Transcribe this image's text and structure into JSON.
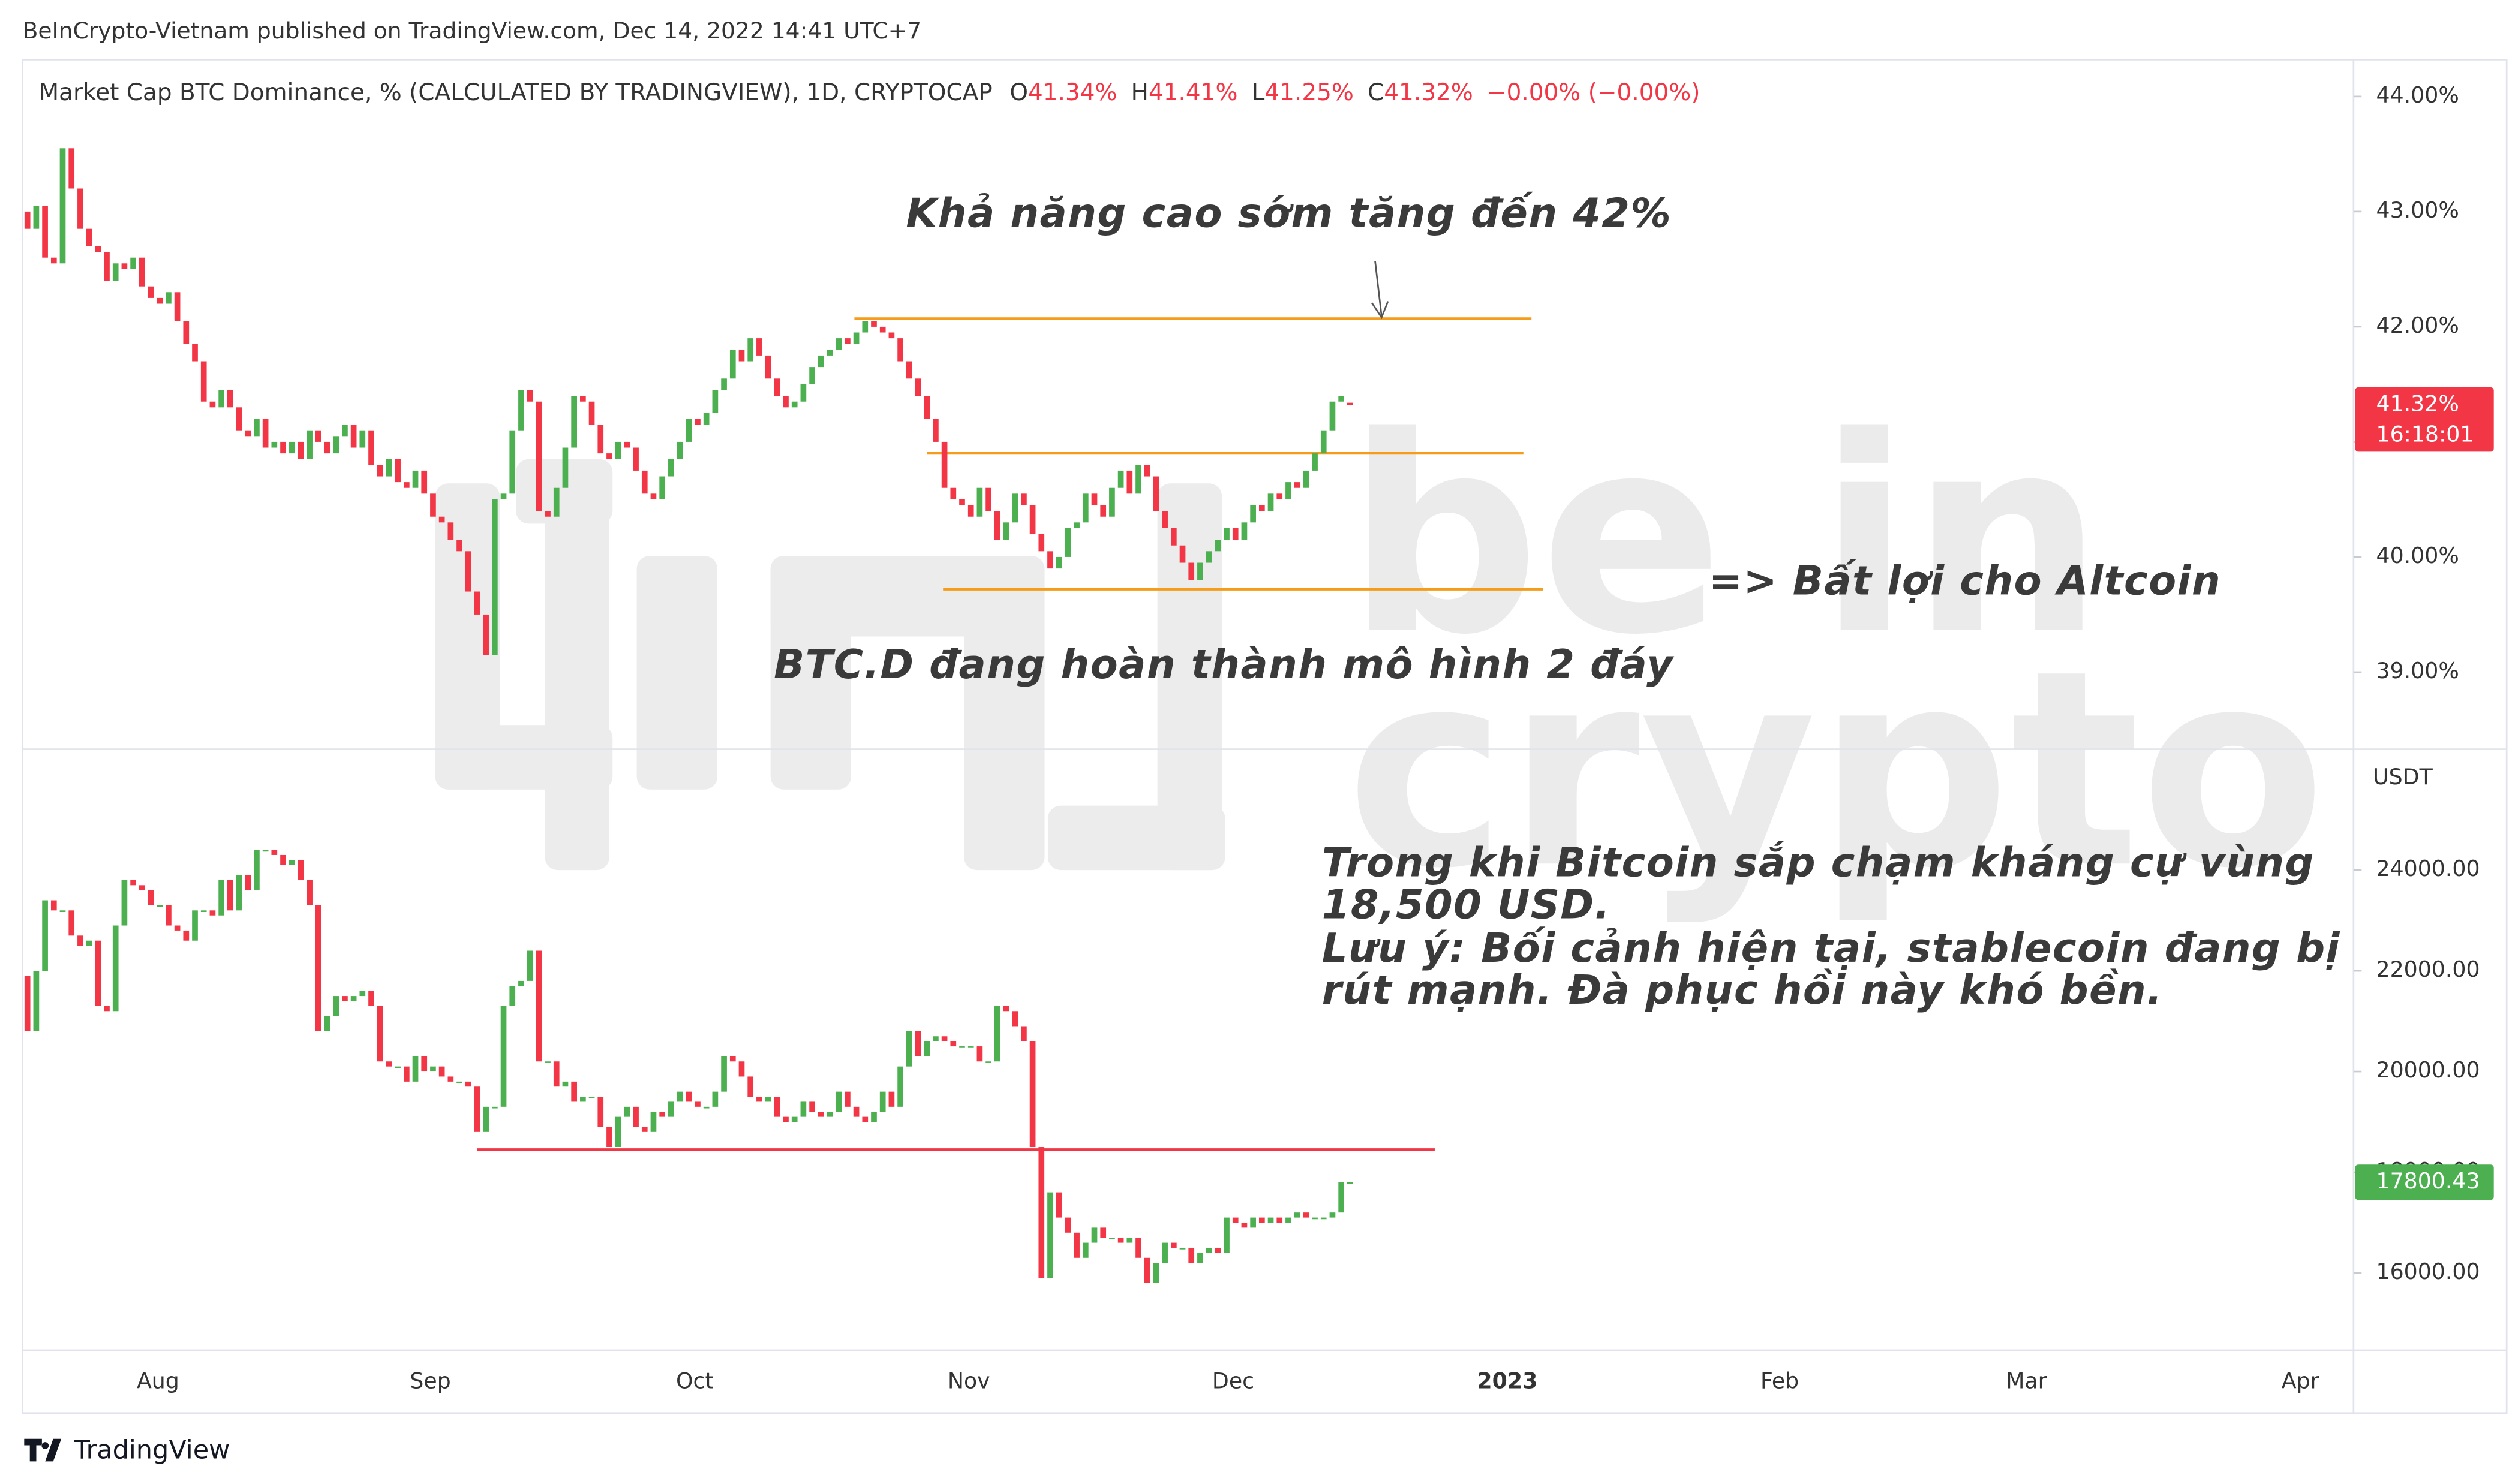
{
  "header": {
    "published": "BeInCrypto-Vietnam published on TradingView.com, Dec 14, 2022 14:41 UTC+7"
  },
  "footer": {
    "brand": "TradingView"
  },
  "watermark": [
    "be in",
    "crypto"
  ],
  "time_axis": {
    "labels": [
      "Aug",
      "Sep",
      "Oct",
      "Nov",
      "Dec",
      "2023",
      "Feb",
      "Mar",
      "Apr"
    ]
  },
  "chart_data": [
    {
      "type": "candlestick",
      "title": "Market Cap BTC Dominance, % (CALCULATED BY TRADINGVIEW), 1D, CRYPTOCAP",
      "legend": [
        "O",
        "41.34%",
        "H",
        "41.41%",
        "L",
        "41.25%",
        "C",
        "41.32%",
        "−0.00% (−0.00%)"
      ],
      "up_color": "#4caf50",
      "down_color": "#f23645",
      "ylim": [
        38.33,
        44.32
      ],
      "yticks": [
        {
          "value": 39,
          "label": "39.00%"
        },
        {
          "value": 40,
          "label": "40.00%"
        },
        {
          "value": 41,
          "label": "41.00%"
        },
        {
          "value": 42,
          "label": "42.00%"
        },
        {
          "value": 43,
          "label": "43.00%"
        },
        {
          "value": 44,
          "label": "44.00%"
        }
      ],
      "last_price": {
        "value": 41.32,
        "label": "41.32%",
        "countdown": "16:18:01"
      },
      "hlines": [
        {
          "value": 42.07,
          "color": "#f59c1a"
        },
        {
          "value": 40.9,
          "color": "#f59c1a"
        },
        {
          "value": 39.72,
          "color": "#f59c1a"
        }
      ],
      "annotations": [
        "Khả năng cao sớm tăng đến 42%",
        "BTC.D đang hoàn thành mô hình 2 đáy",
        "=> Bất lợi cho Altcoin"
      ],
      "open": [
        43.0,
        42.85,
        43.05,
        42.6,
        42.55,
        43.55,
        43.2,
        42.85,
        42.7,
        42.65,
        42.4,
        42.55,
        42.5,
        42.6,
        42.35,
        42.25,
        42.2,
        42.3,
        42.05,
        41.85,
        41.7,
        41.35,
        41.3,
        41.45,
        41.3,
        41.1,
        41.05,
        41.2,
        40.95,
        41.0,
        40.9,
        41.0,
        40.85,
        41.1,
        41.0,
        40.9,
        41.05,
        41.15,
        40.95,
        41.1,
        40.8,
        40.7,
        40.85,
        40.65,
        40.6,
        40.75,
        40.55,
        40.35,
        40.3,
        40.15,
        40.05,
        39.7,
        39.5,
        39.15,
        40.5,
        40.55,
        41.1,
        41.45,
        41.35,
        40.4,
        40.35,
        40.6,
        40.95,
        41.4,
        41.35,
        41.15,
        40.9,
        40.85,
        41.0,
        40.95,
        40.75,
        40.55,
        40.5,
        40.7,
        40.85,
        41.0,
        41.2,
        41.15,
        41.25,
        41.45,
        41.55,
        41.8,
        41.7,
        41.9,
        41.75,
        41.55,
        41.4,
        41.3,
        41.35,
        41.5,
        41.65,
        41.75,
        41.8,
        41.9,
        41.85,
        41.95,
        42.05,
        42.0,
        41.95,
        41.9,
        41.7,
        41.55,
        41.4,
        41.2,
        41.0,
        40.6,
        40.5,
        40.45,
        40.35,
        40.6,
        40.4,
        40.15,
        40.3,
        40.55,
        40.45,
        40.2,
        40.05,
        39.9,
        40.0,
        40.25,
        40.3,
        40.55,
        40.45,
        40.35,
        40.6,
        40.75,
        40.55,
        40.8,
        40.7,
        40.4,
        40.25,
        40.1,
        39.95,
        39.8,
        39.95,
        40.05,
        40.15,
        40.25,
        40.15,
        40.3,
        40.45,
        40.4,
        40.55,
        40.5,
        40.65,
        40.6,
        40.75,
        40.9,
        41.1,
        41.35,
        41.34
      ],
      "close": [
        42.85,
        43.05,
        42.6,
        42.55,
        43.55,
        43.2,
        42.85,
        42.7,
        42.65,
        42.4,
        42.55,
        42.5,
        42.6,
        42.35,
        42.25,
        42.2,
        42.3,
        42.05,
        41.85,
        41.7,
        41.35,
        41.3,
        41.45,
        41.3,
        41.1,
        41.05,
        41.2,
        40.95,
        41.0,
        40.9,
        41.0,
        40.85,
        41.1,
        41.0,
        40.9,
        41.05,
        41.15,
        40.95,
        41.1,
        40.8,
        40.7,
        40.85,
        40.65,
        40.6,
        40.75,
        40.55,
        40.35,
        40.3,
        40.15,
        40.05,
        39.7,
        39.5,
        39.15,
        40.5,
        40.55,
        41.1,
        41.45,
        41.35,
        40.4,
        40.35,
        40.6,
        40.95,
        41.4,
        41.35,
        41.15,
        40.9,
        40.85,
        41.0,
        40.95,
        40.75,
        40.55,
        40.5,
        40.7,
        40.85,
        41.0,
        41.2,
        41.15,
        41.25,
        41.45,
        41.55,
        41.8,
        41.7,
        41.9,
        41.75,
        41.55,
        41.4,
        41.3,
        41.35,
        41.5,
        41.65,
        41.75,
        41.8,
        41.9,
        41.85,
        41.95,
        42.05,
        42.0,
        41.95,
        41.9,
        41.7,
        41.55,
        41.4,
        41.2,
        41.0,
        40.6,
        40.5,
        40.45,
        40.35,
        40.6,
        40.4,
        40.15,
        40.3,
        40.55,
        40.45,
        40.2,
        40.05,
        39.9,
        40.0,
        40.25,
        40.3,
        40.55,
        40.45,
        40.35,
        40.6,
        40.75,
        40.55,
        40.8,
        40.7,
        40.4,
        40.25,
        40.1,
        39.95,
        39.8,
        39.95,
        40.05,
        40.15,
        40.25,
        40.15,
        40.3,
        40.45,
        40.4,
        40.55,
        40.5,
        40.65,
        40.6,
        40.75,
        40.9,
        41.1,
        41.35,
        41.4,
        41.32
      ]
    },
    {
      "type": "candlestick",
      "axis_unit": "USDT",
      "up_color": "#4caf50",
      "down_color": "#f23645",
      "ylim": [
        14464,
        26400
      ],
      "yticks": [
        {
          "value": 16000,
          "label": "16000.00"
        },
        {
          "value": 18000,
          "label": "18000.00"
        },
        {
          "value": 20000,
          "label": "20000.00"
        },
        {
          "value": 22000,
          "label": "22000.00"
        },
        {
          "value": 24000,
          "label": "24000.00"
        }
      ],
      "last_price": {
        "value": 17800.43,
        "label": "17800.43"
      },
      "hlines": [
        {
          "value": 18450,
          "color": "#f23645"
        }
      ],
      "annotations": [
        "Trong khi Bitcoin sắp chạm kháng cự vùng",
        "18,500 USD.",
        "Lưu ý: Bối cảnh hiện tại, stablecoin đang bị",
        "rút mạnh. Đà phục hồi này khó bền."
      ],
      "open": [
        21900,
        20800,
        22000,
        23400,
        23200,
        23200,
        22700,
        22500,
        22600,
        21300,
        21200,
        22900,
        23800,
        23700,
        23600,
        23300,
        23300,
        22900,
        22800,
        22600,
        23200,
        23200,
        23100,
        23800,
        23200,
        23900,
        23600,
        24400,
        24400,
        24300,
        24100,
        24200,
        23800,
        23300,
        20800,
        21100,
        21500,
        21400,
        21500,
        21600,
        21300,
        20200,
        20100,
        20100,
        19800,
        20300,
        20000,
        20100,
        19900,
        19800,
        19800,
        19700,
        18800,
        19300,
        19300,
        21300,
        21700,
        21800,
        22400,
        20200,
        20200,
        19700,
        19800,
        19400,
        19500,
        19500,
        18900,
        18500,
        19100,
        19300,
        18900,
        18800,
        19200,
        19100,
        19400,
        19600,
        19400,
        19300,
        19300,
        19600,
        20300,
        20200,
        19900,
        19500,
        19400,
        19500,
        19100,
        19000,
        19100,
        19400,
        19200,
        19100,
        19200,
        19600,
        19300,
        19100,
        19000,
        19200,
        19600,
        19300,
        20100,
        20800,
        20300,
        20600,
        20700,
        20600,
        20500,
        20500,
        20500,
        20200,
        20200,
        21300,
        21200,
        20900,
        20600,
        18500,
        15900,
        17600,
        17100,
        16800,
        16300,
        16600,
        16900,
        16700,
        16700,
        16600,
        16700,
        16300,
        15800,
        16200,
        16600,
        16500,
        16500,
        16200,
        16400,
        16500,
        16400,
        17100,
        17000,
        16900,
        17100,
        17000,
        17100,
        17000,
        17100,
        17200,
        17100,
        17100,
        17100,
        17200,
        17790
      ],
      "close": [
        20800,
        22000,
        23400,
        23200,
        23200,
        22700,
        22500,
        22600,
        21300,
        21200,
        22900,
        23800,
        23700,
        23600,
        23300,
        23300,
        22900,
        22800,
        22600,
        23200,
        23200,
        23100,
        23800,
        23200,
        23900,
        23600,
        24400,
        24400,
        24300,
        24100,
        24200,
        23800,
        23300,
        20800,
        21100,
        21500,
        21400,
        21500,
        21600,
        21300,
        20200,
        20100,
        20100,
        19800,
        20300,
        20000,
        20100,
        19900,
        19800,
        19800,
        19700,
        18800,
        19300,
        19300,
        21300,
        21700,
        21800,
        22400,
        20200,
        20200,
        19700,
        19800,
        19400,
        19500,
        19500,
        18900,
        18500,
        19100,
        19300,
        18900,
        18800,
        19200,
        19100,
        19400,
        19600,
        19400,
        19300,
        19300,
        19600,
        20300,
        20200,
        19900,
        19500,
        19400,
        19500,
        19100,
        19000,
        19100,
        19400,
        19200,
        19100,
        19200,
        19600,
        19300,
        19100,
        19000,
        19200,
        19600,
        19300,
        20100,
        20800,
        20300,
        20600,
        20700,
        20600,
        20500,
        20500,
        20500,
        20200,
        20200,
        21300,
        21200,
        20900,
        20600,
        18500,
        15900,
        17600,
        17100,
        16800,
        16300,
        16600,
        16900,
        16700,
        16700,
        16600,
        16700,
        16300,
        15800,
        16200,
        16600,
        16500,
        16500,
        16200,
        16400,
        16500,
        16400,
        17100,
        17000,
        16900,
        17100,
        17000,
        17100,
        17000,
        17100,
        17200,
        17100,
        17100,
        17100,
        17200,
        17800,
        17800.43
      ]
    }
  ]
}
